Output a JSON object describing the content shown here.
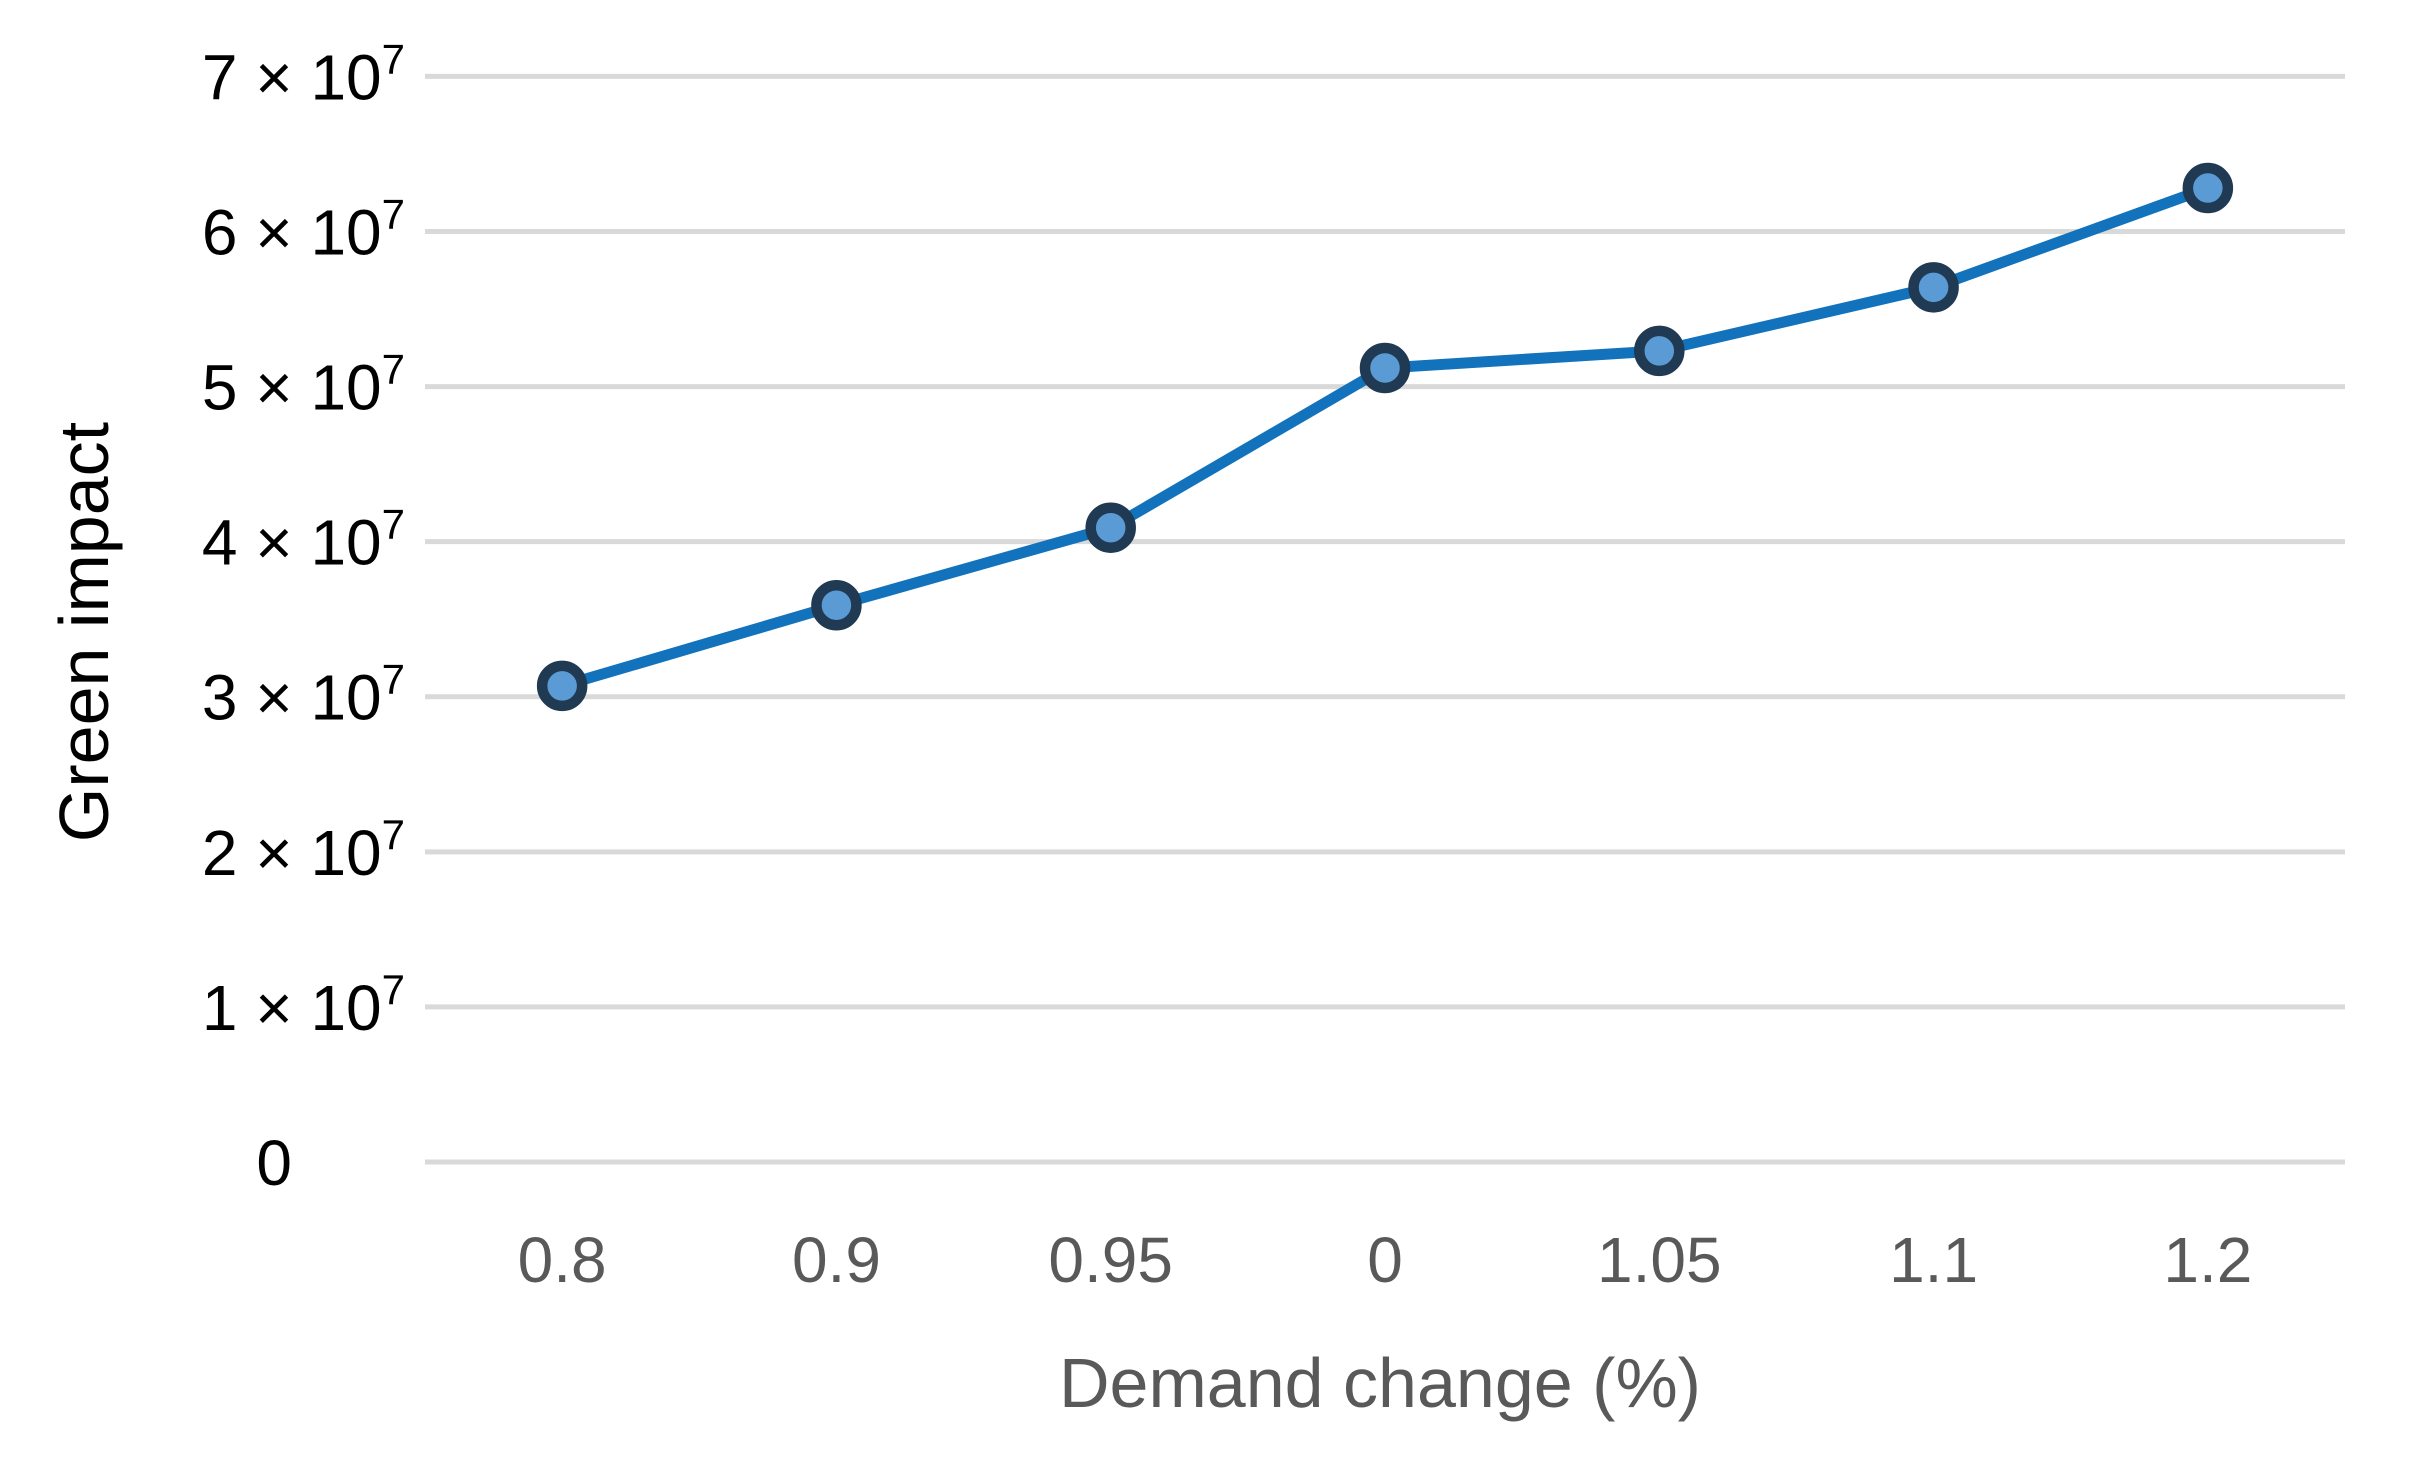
{
  "chart_data": {
    "type": "line",
    "title": "",
    "xlabel": "Demand change (%)",
    "ylabel": "Green impact",
    "categories": [
      "0.8",
      "0.9",
      "0.95",
      "0",
      "1.05",
      "1.1",
      "1.2"
    ],
    "series": [
      {
        "name": "Green impact",
        "values": [
          30700000,
          35900000,
          40900000,
          51200000,
          52300000,
          56400000,
          62800000
        ]
      }
    ],
    "ylim": [
      0,
      70000000
    ],
    "y_ticks": [
      {
        "value": 0,
        "label": "0"
      },
      {
        "value": 10000000,
        "label": "1 × 10⁷"
      },
      {
        "value": 20000000,
        "label": "2 × 10⁷"
      },
      {
        "value": 30000000,
        "label": "3 × 10⁷"
      },
      {
        "value": 40000000,
        "label": "4 × 10⁷"
      },
      {
        "value": 50000000,
        "label": "5 × 10⁷"
      },
      {
        "value": 60000000,
        "label": "6 × 10⁷"
      },
      {
        "value": 70000000,
        "label": "7 × 10⁷"
      }
    ],
    "grid": "horizontal",
    "legend": "none",
    "colors": {
      "line": "#1272BC",
      "marker_fill": "#5B9BD5",
      "marker_stroke": "#1F3A52",
      "gridline": "#D9D9D9",
      "x_text": "#595959",
      "y_text": "#000000",
      "background": "#FFFFFF"
    }
  }
}
